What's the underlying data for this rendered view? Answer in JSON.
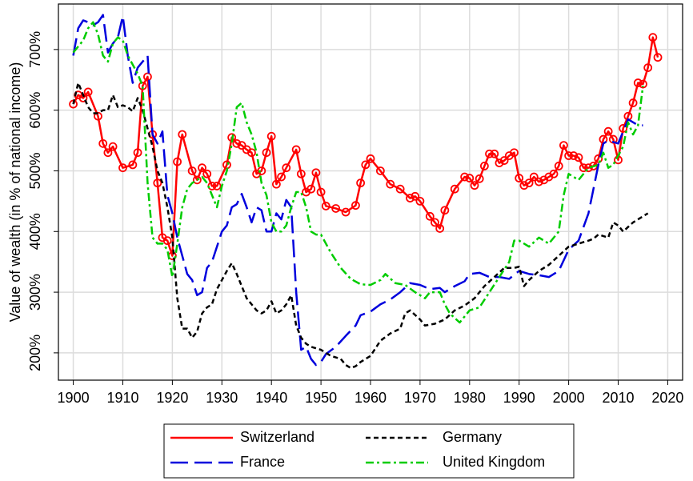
{
  "chart_data": {
    "type": "line",
    "y_label": "Value of wealth (in % of national income)",
    "xlim": [
      1897,
      2023
    ],
    "xticks": [
      1900,
      1910,
      1920,
      1930,
      1940,
      1950,
      1960,
      1970,
      1980,
      1990,
      2000,
      2010,
      2020
    ],
    "ylim": [
      155,
      775
    ],
    "yticks": [
      {
        "value": 200,
        "label": "200%"
      },
      {
        "value": 300,
        "label": "300%"
      },
      {
        "value": 400,
        "label": "400%"
      },
      {
        "value": 500,
        "label": "500%"
      },
      {
        "value": 600,
        "label": "600%"
      },
      {
        "value": 700,
        "label": "700%"
      }
    ],
    "grid": true,
    "legend_position": "bottom",
    "series": [
      {
        "name": "Switzerland",
        "color": "#ff0000",
        "dash": "solid",
        "marker": "circle",
        "x": [
          1900,
          1901,
          1902,
          1903,
          1905,
          1906,
          1907,
          1908,
          1910,
          1912,
          1913,
          1914,
          1915,
          1916,
          1917,
          1918,
          1919,
          1920,
          1921,
          1922,
          1924,
          1925,
          1926,
          1927,
          1928,
          1929,
          1931,
          1932,
          1933,
          1934,
          1935,
          1936,
          1937,
          1938,
          1939,
          1940,
          1941,
          1942,
          1943,
          1945,
          1946,
          1947,
          1948,
          1949,
          1950,
          1951,
          1953,
          1955,
          1957,
          1958,
          1959,
          1960,
          1962,
          1964,
          1966,
          1968,
          1969,
          1970,
          1972,
          1973,
          1974,
          1975,
          1977,
          1979,
          1980,
          1981,
          1982,
          1983,
          1984,
          1985,
          1986,
          1987,
          1988,
          1989,
          1990,
          1991,
          1992,
          1993,
          1994,
          1995,
          1996,
          1997,
          1998,
          1999,
          2000,
          2001,
          2002,
          2003,
          2004,
          2005,
          2006,
          2007,
          2008,
          2009,
          2010,
          2011,
          2012,
          2013,
          2014,
          2015,
          2016,
          2017,
          2018
        ],
        "values": [
          610,
          625,
          620,
          630,
          590,
          545,
          530,
          540,
          505,
          510,
          530,
          640,
          655,
          560,
          480,
          390,
          385,
          360,
          515,
          560,
          500,
          485,
          505,
          495,
          475,
          475,
          510,
          555,
          545,
          542,
          535,
          530,
          495,
          500,
          530,
          557,
          478,
          490,
          505,
          535,
          495,
          465,
          470,
          497,
          465,
          442,
          438,
          432,
          443,
          480,
          510,
          520,
          500,
          478,
          470,
          455,
          458,
          450,
          425,
          415,
          405,
          435,
          470,
          490,
          488,
          476,
          487,
          508,
          528,
          528,
          513,
          517,
          525,
          530,
          488,
          476,
          480,
          490,
          482,
          485,
          490,
          495,
          508,
          542,
          525,
          525,
          522,
          505,
          505,
          508,
          520,
          552,
          565,
          552,
          518,
          570,
          590,
          612,
          645,
          643,
          670,
          720,
          687
        ]
      },
      {
        "name": "France",
        "color": "#0000dd",
        "dash": "22 8",
        "x": [
          1900,
          1901,
          1902,
          1903,
          1904,
          1905,
          1906,
          1907,
          1908,
          1909,
          1910,
          1911,
          1912,
          1913,
          1915,
          1916,
          1917,
          1918,
          1919,
          1920,
          1921,
          1922,
          1923,
          1924,
          1925,
          1926,
          1927,
          1928,
          1929,
          1930,
          1931,
          1932,
          1933,
          1934,
          1935,
          1936,
          1937,
          1938,
          1939,
          1940,
          1941,
          1942,
          1943,
          1944,
          1945,
          1946,
          1947,
          1948,
          1949,
          1950,
          1951,
          1953,
          1955,
          1957,
          1958,
          1960,
          1962,
          1964,
          1966,
          1968,
          1970,
          1972,
          1974,
          1975,
          1977,
          1979,
          1980,
          1982,
          1984,
          1986,
          1988,
          1990,
          1992,
          1994,
          1996,
          1998,
          2000,
          2002,
          2004,
          2006,
          2007,
          2008,
          2010,
          2012,
          2014,
          2015
        ],
        "values": [
          690,
          735,
          748,
          745,
          740,
          745,
          757,
          695,
          710,
          720,
          755,
          690,
          645,
          670,
          690,
          560,
          545,
          565,
          460,
          430,
          390,
          360,
          330,
          320,
          295,
          300,
          340,
          350,
          375,
          400,
          410,
          440,
          445,
          462,
          440,
          415,
          440,
          435,
          400,
          400,
          430,
          420,
          452,
          440,
          300,
          205,
          210,
          190,
          180,
          185,
          198,
          210,
          228,
          245,
          262,
          268,
          280,
          288,
          300,
          315,
          312,
          305,
          307,
          300,
          310,
          318,
          330,
          332,
          325,
          325,
          322,
          335,
          330,
          328,
          325,
          335,
          370,
          385,
          430,
          510,
          545,
          550,
          545,
          585,
          575,
          575
        ]
      },
      {
        "name": "Germany",
        "color": "#000000",
        "dash": "6 4",
        "x": [
          1900,
          1901,
          1902,
          1903,
          1904,
          1905,
          1906,
          1907,
          1908,
          1909,
          1910,
          1911,
          1912,
          1913,
          1914,
          1915,
          1916,
          1917,
          1918,
          1919,
          1920,
          1921,
          1922,
          1923,
          1924,
          1925,
          1926,
          1927,
          1928,
          1929,
          1930,
          1931,
          1932,
          1933,
          1934,
          1935,
          1936,
          1937,
          1938,
          1939,
          1940,
          1941,
          1942,
          1943,
          1944,
          1945,
          1946,
          1947,
          1948,
          1950,
          1952,
          1954,
          1955,
          1956,
          1957,
          1958,
          1960,
          1962,
          1964,
          1966,
          1967,
          1968,
          1970,
          1971,
          1973,
          1975,
          1977,
          1979,
          1981,
          1983,
          1985,
          1987,
          1989,
          1990,
          1991,
          1992,
          1994,
          1996,
          1998,
          2000,
          2002,
          2004,
          2005,
          2006,
          2008,
          2009,
          2010,
          2011,
          2013,
          2016
        ],
        "values": [
          610,
          645,
          625,
          605,
          595,
          595,
          600,
          600,
          625,
          605,
          608,
          605,
          598,
          620,
          600,
          570,
          540,
          500,
          480,
          440,
          390,
          290,
          240,
          240,
          225,
          235,
          265,
          275,
          280,
          305,
          320,
          335,
          348,
          330,
          310,
          290,
          280,
          270,
          265,
          270,
          285,
          265,
          270,
          280,
          295,
          245,
          225,
          215,
          210,
          205,
          195,
          190,
          180,
          175,
          178,
          185,
          195,
          220,
          232,
          240,
          265,
          270,
          255,
          245,
          248,
          255,
          270,
          278,
          290,
          310,
          325,
          340,
          340,
          342,
          310,
          320,
          335,
          345,
          360,
          375,
          380,
          385,
          388,
          395,
          390,
          415,
          410,
          400,
          415,
          430
        ]
      },
      {
        "name": "United Kingdom",
        "color": "#00cc00",
        "dash": "10 4 3 4",
        "x": [
          1900,
          1901,
          1902,
          1903,
          1904,
          1905,
          1906,
          1907,
          1908,
          1909,
          1910,
          1911,
          1912,
          1913,
          1914,
          1915,
          1916,
          1917,
          1918,
          1919,
          1920,
          1921,
          1922,
          1923,
          1924,
          1925,
          1926,
          1927,
          1928,
          1929,
          1930,
          1931,
          1932,
          1933,
          1934,
          1935,
          1936,
          1937,
          1938,
          1939,
          1940,
          1941,
          1942,
          1943,
          1944,
          1945,
          1946,
          1947,
          1948,
          1949,
          1950,
          1952,
          1954,
          1956,
          1958,
          1960,
          1962,
          1963,
          1965,
          1967,
          1969,
          1971,
          1972,
          1974,
          1975,
          1976,
          1978,
          1980,
          1982,
          1984,
          1986,
          1988,
          1989,
          1990,
          1992,
          1994,
          1996,
          1998,
          1999,
          2000,
          2002,
          2004,
          2006,
          2007,
          2008,
          2009,
          2011,
          2012,
          2013,
          2014,
          2015
        ],
        "values": [
          695,
          705,
          715,
          735,
          745,
          725,
          690,
          680,
          710,
          720,
          715,
          690,
          675,
          660,
          640,
          480,
          390,
          380,
          380,
          370,
          325,
          380,
          440,
          470,
          480,
          485,
          490,
          480,
          460,
          440,
          475,
          500,
          545,
          605,
          612,
          580,
          560,
          530,
          480,
          460,
          415,
          400,
          400,
          410,
          440,
          465,
          465,
          440,
          400,
          395,
          395,
          365,
          340,
          322,
          313,
          312,
          320,
          330,
          315,
          312,
          300,
          290,
          300,
          300,
          280,
          265,
          250,
          270,
          275,
          300,
          325,
          350,
          385,
          385,
          375,
          390,
          380,
          400,
          460,
          495,
          485,
          505,
          510,
          530,
          505,
          510,
          540,
          580,
          560,
          575,
          640
        ]
      }
    ]
  }
}
